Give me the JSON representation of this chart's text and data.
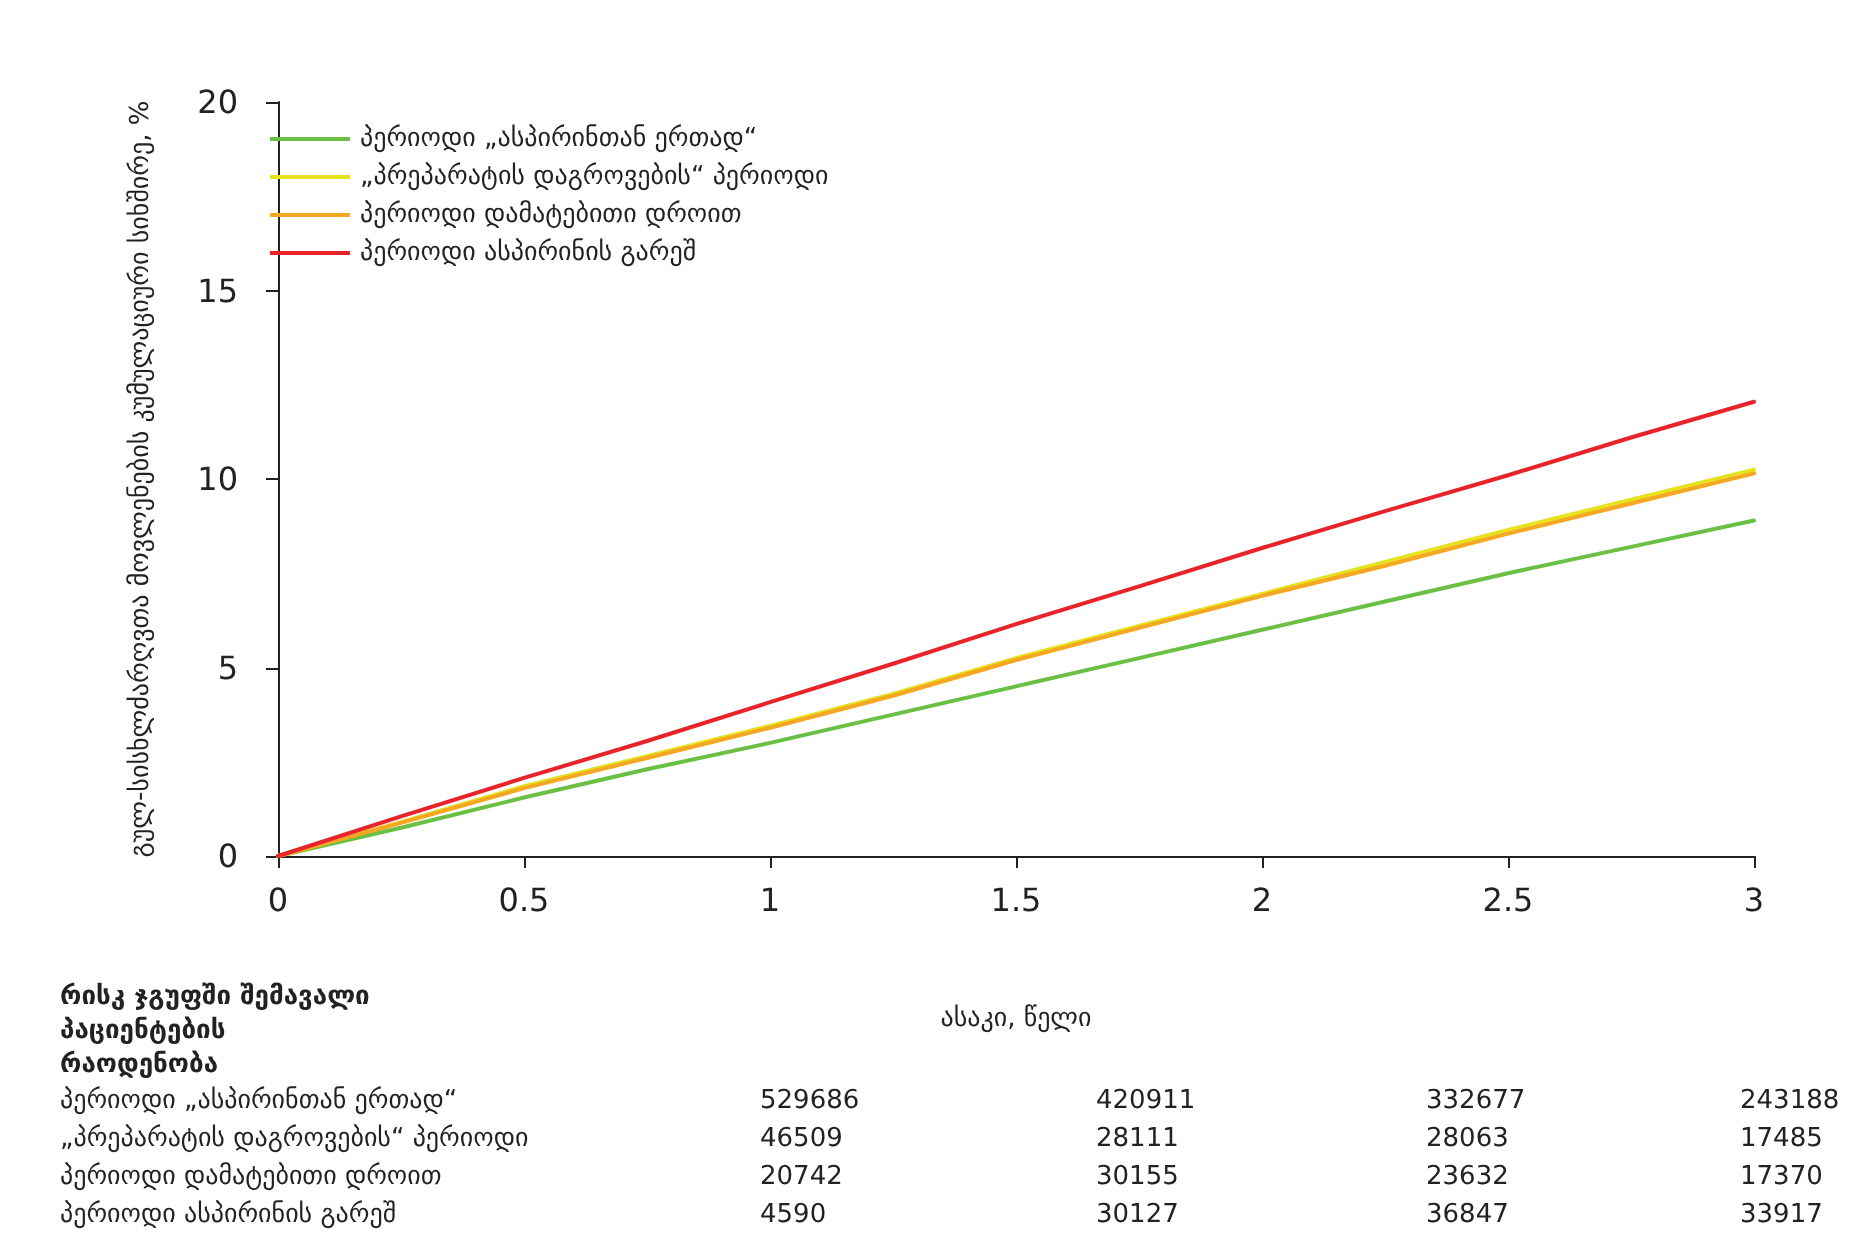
{
  "chart_data": {
    "type": "line",
    "xlabel": "ასაკი, წელი",
    "ylabel": "გულ-სისხლძარღვთა მოვლენების კუმულაციური სიხშირე, %",
    "x": [
      0,
      0.25,
      0.5,
      0.75,
      1,
      1.25,
      1.5,
      1.75,
      2,
      2.25,
      2.5,
      2.75,
      3
    ],
    "series": [
      {
        "name": "პერიოდი „ასპირინთან ერთად“",
        "color": "#6abf45",
        "values": [
          0,
          0.75,
          1.55,
          2.3,
          3.0,
          3.75,
          4.5,
          5.25,
          6.0,
          6.75,
          7.5,
          8.2,
          8.9
        ]
      },
      {
        "name": "„პრეპარატის დაგროვების“ პერიოდი",
        "color": "#e6e21c",
        "values": [
          0,
          0.9,
          1.85,
          2.65,
          3.45,
          4.3,
          5.25,
          6.1,
          6.95,
          7.8,
          8.65,
          9.45,
          10.25
        ]
      },
      {
        "name": "პერიოდი დამატებითი დროით",
        "color": "#f5a623",
        "values": [
          0,
          0.88,
          1.8,
          2.6,
          3.4,
          4.25,
          5.2,
          6.05,
          6.9,
          7.7,
          8.55,
          9.35,
          10.15
        ]
      },
      {
        "name": "პერიოდი ასპირინის გარეშ",
        "color": "#e8232a",
        "values": [
          0,
          1.05,
          2.07,
          3.05,
          4.08,
          5.1,
          6.15,
          7.15,
          8.17,
          9.15,
          10.1,
          11.1,
          12.05
        ]
      }
    ],
    "xlim": [
      0,
      3
    ],
    "xticks": [
      0,
      0.5,
      1,
      1.5,
      2,
      2.5,
      3
    ],
    "ylim": [
      0,
      20
    ],
    "yticks": [
      0,
      5,
      10,
      15,
      20
    ],
    "grid": false,
    "legend": "top left",
    "marker": "none",
    "line_style": "solid",
    "annotations": [
      "რისკ ჯგუფში შემავალი პაციენტების რაოდენობა",
      "პერიოდი „ასპირინთან ერთად“",
      "529686",
      "420911",
      "332677",
      "243188",
      "„პრეპარატის დაგროვების“ პერიოდი",
      "46509",
      "28111",
      "28063",
      "17485",
      "პერიოდი დამატებითი დროით",
      "20742",
      "30155",
      "23632",
      "17370",
      "პერიოდი ასპირინის გარეშ",
      "4590",
      "30127",
      "36847",
      "33917"
    ]
  }
}
